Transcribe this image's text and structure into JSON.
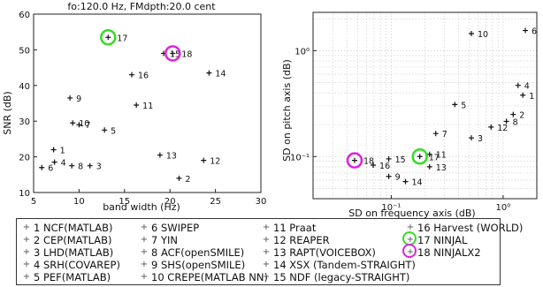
{
  "chart_data": [
    {
      "type": "scatter",
      "title": "fo:120.0 Hz, FMdpth:20.0 cent",
      "xlabel": "band width (Hz)",
      "ylabel": "SNR (dB)",
      "xlim": [
        5,
        30
      ],
      "ylim": [
        10,
        60
      ],
      "xticks": [
        5,
        10,
        15,
        20,
        25,
        30
      ],
      "yticks": [
        10,
        20,
        30,
        40,
        50,
        60
      ],
      "grid": false,
      "points": [
        {
          "id": 1,
          "label": "1",
          "x": 7.2,
          "y": 22.0
        },
        {
          "id": 2,
          "label": "2",
          "x": 21.0,
          "y": 14.0
        },
        {
          "id": 3,
          "label": "3",
          "x": 11.2,
          "y": 17.5
        },
        {
          "id": 4,
          "label": "4",
          "x": 7.3,
          "y": 18.5
        },
        {
          "id": 5,
          "label": "5",
          "x": 12.8,
          "y": 27.5
        },
        {
          "id": 6,
          "label": "6",
          "x": 5.9,
          "y": 17.0
        },
        {
          "id": 7,
          "label": "7",
          "x": 10.0,
          "y": 29.0
        },
        {
          "id": 8,
          "label": "8",
          "x": 9.2,
          "y": 17.5
        },
        {
          "id": 9,
          "label": "9",
          "x": 9.0,
          "y": 36.5
        },
        {
          "id": 10,
          "label": "10",
          "x": 9.3,
          "y": 29.5
        },
        {
          "id": 11,
          "label": "11",
          "x": 16.3,
          "y": 34.5
        },
        {
          "id": 12,
          "label": "12",
          "x": 23.7,
          "y": 19.0
        },
        {
          "id": 13,
          "label": "13",
          "x": 18.9,
          "y": 20.5
        },
        {
          "id": 14,
          "label": "14",
          "x": 24.3,
          "y": 43.5
        },
        {
          "id": 15,
          "label": "15",
          "x": 19.3,
          "y": 49.0
        },
        {
          "id": 16,
          "label": "16",
          "x": 15.8,
          "y": 43.0
        },
        {
          "id": 17,
          "label": "17",
          "x": 13.2,
          "y": 53.5,
          "highlight": "#33dd22"
        },
        {
          "id": 18,
          "label": "18",
          "x": 20.3,
          "y": 49.0,
          "highlight": "#dd22dd"
        }
      ]
    },
    {
      "type": "scatter",
      "xlabel": "SD on frequency axis (dB)",
      "ylabel": "SD on pitch axis (dB)",
      "xscale": "log",
      "yscale": "log",
      "xlim": [
        0.02,
        2.0
      ],
      "ylim": [
        0.04,
        2.3
      ],
      "xticks": [
        0.1,
        1
      ],
      "xtick_labels": [
        "10⁻¹",
        "10⁰"
      ],
      "yticks": [
        0.1,
        1
      ],
      "ytick_labels": [
        "10⁻¹",
        "10⁰"
      ],
      "grid": true,
      "points": [
        {
          "id": 1,
          "label": "1",
          "x": 1.5,
          "y": 0.38
        },
        {
          "id": 2,
          "label": "2",
          "x": 1.23,
          "y": 0.25
        },
        {
          "id": 3,
          "label": "3",
          "x": 0.52,
          "y": 0.15
        },
        {
          "id": 4,
          "label": "4",
          "x": 1.36,
          "y": 0.47
        },
        {
          "id": 5,
          "label": "5",
          "x": 0.37,
          "y": 0.31
        },
        {
          "id": 6,
          "label": "6",
          "x": 1.58,
          "y": 1.55
        },
        {
          "id": 7,
          "label": "7",
          "x": 0.25,
          "y": 0.165
        },
        {
          "id": 8,
          "label": "8",
          "x": 1.07,
          "y": 0.215
        },
        {
          "id": 9,
          "label": "9",
          "x": 0.095,
          "y": 0.065
        },
        {
          "id": 10,
          "label": "10",
          "x": 0.52,
          "y": 1.45
        },
        {
          "id": 11,
          "label": "11",
          "x": 0.22,
          "y": 0.105
        },
        {
          "id": 12,
          "label": "12",
          "x": 0.78,
          "y": 0.19
        },
        {
          "id": 13,
          "label": "13",
          "x": 0.22,
          "y": 0.08
        },
        {
          "id": 14,
          "label": "14",
          "x": 0.134,
          "y": 0.058
        },
        {
          "id": 15,
          "label": "15",
          "x": 0.095,
          "y": 0.095
        },
        {
          "id": 16,
          "label": "16",
          "x": 0.069,
          "y": 0.083
        },
        {
          "id": 17,
          "label": "17",
          "x": 0.18,
          "y": 0.1,
          "highlight": "#33dd22"
        },
        {
          "id": 18,
          "label": "18",
          "x": 0.047,
          "y": 0.092,
          "highlight": "#dd22dd"
        }
      ]
    }
  ],
  "legend": {
    "columns": [
      [
        "1 NCF(MATLAB)",
        "2 CEP(MATLAB)",
        "3 LHD(MATLAB)",
        "4 SRH(COVAREP)",
        "5 PEF(MATLAB)"
      ],
      [
        "6 SWIPEP",
        "7 YIN",
        "8 ACF(openSMILE)",
        "9 SHS(openSMILE)",
        "10 CREPE(MATLAB NN)"
      ],
      [
        "11 Praat",
        "12 REAPER",
        "13 RAPT(VOICEBOX)",
        "14 XSX (Tandem-STRAIGHT)",
        "15 NDF (legacy-STRAIGHT)"
      ],
      [
        "16 Harvest (WORLD)",
        "17 NINJAL",
        "18 NINJALX2"
      ]
    ],
    "rings": {
      "17 NINJAL": "#33dd22",
      "18 NINJALX2": "#dd22dd"
    }
  }
}
